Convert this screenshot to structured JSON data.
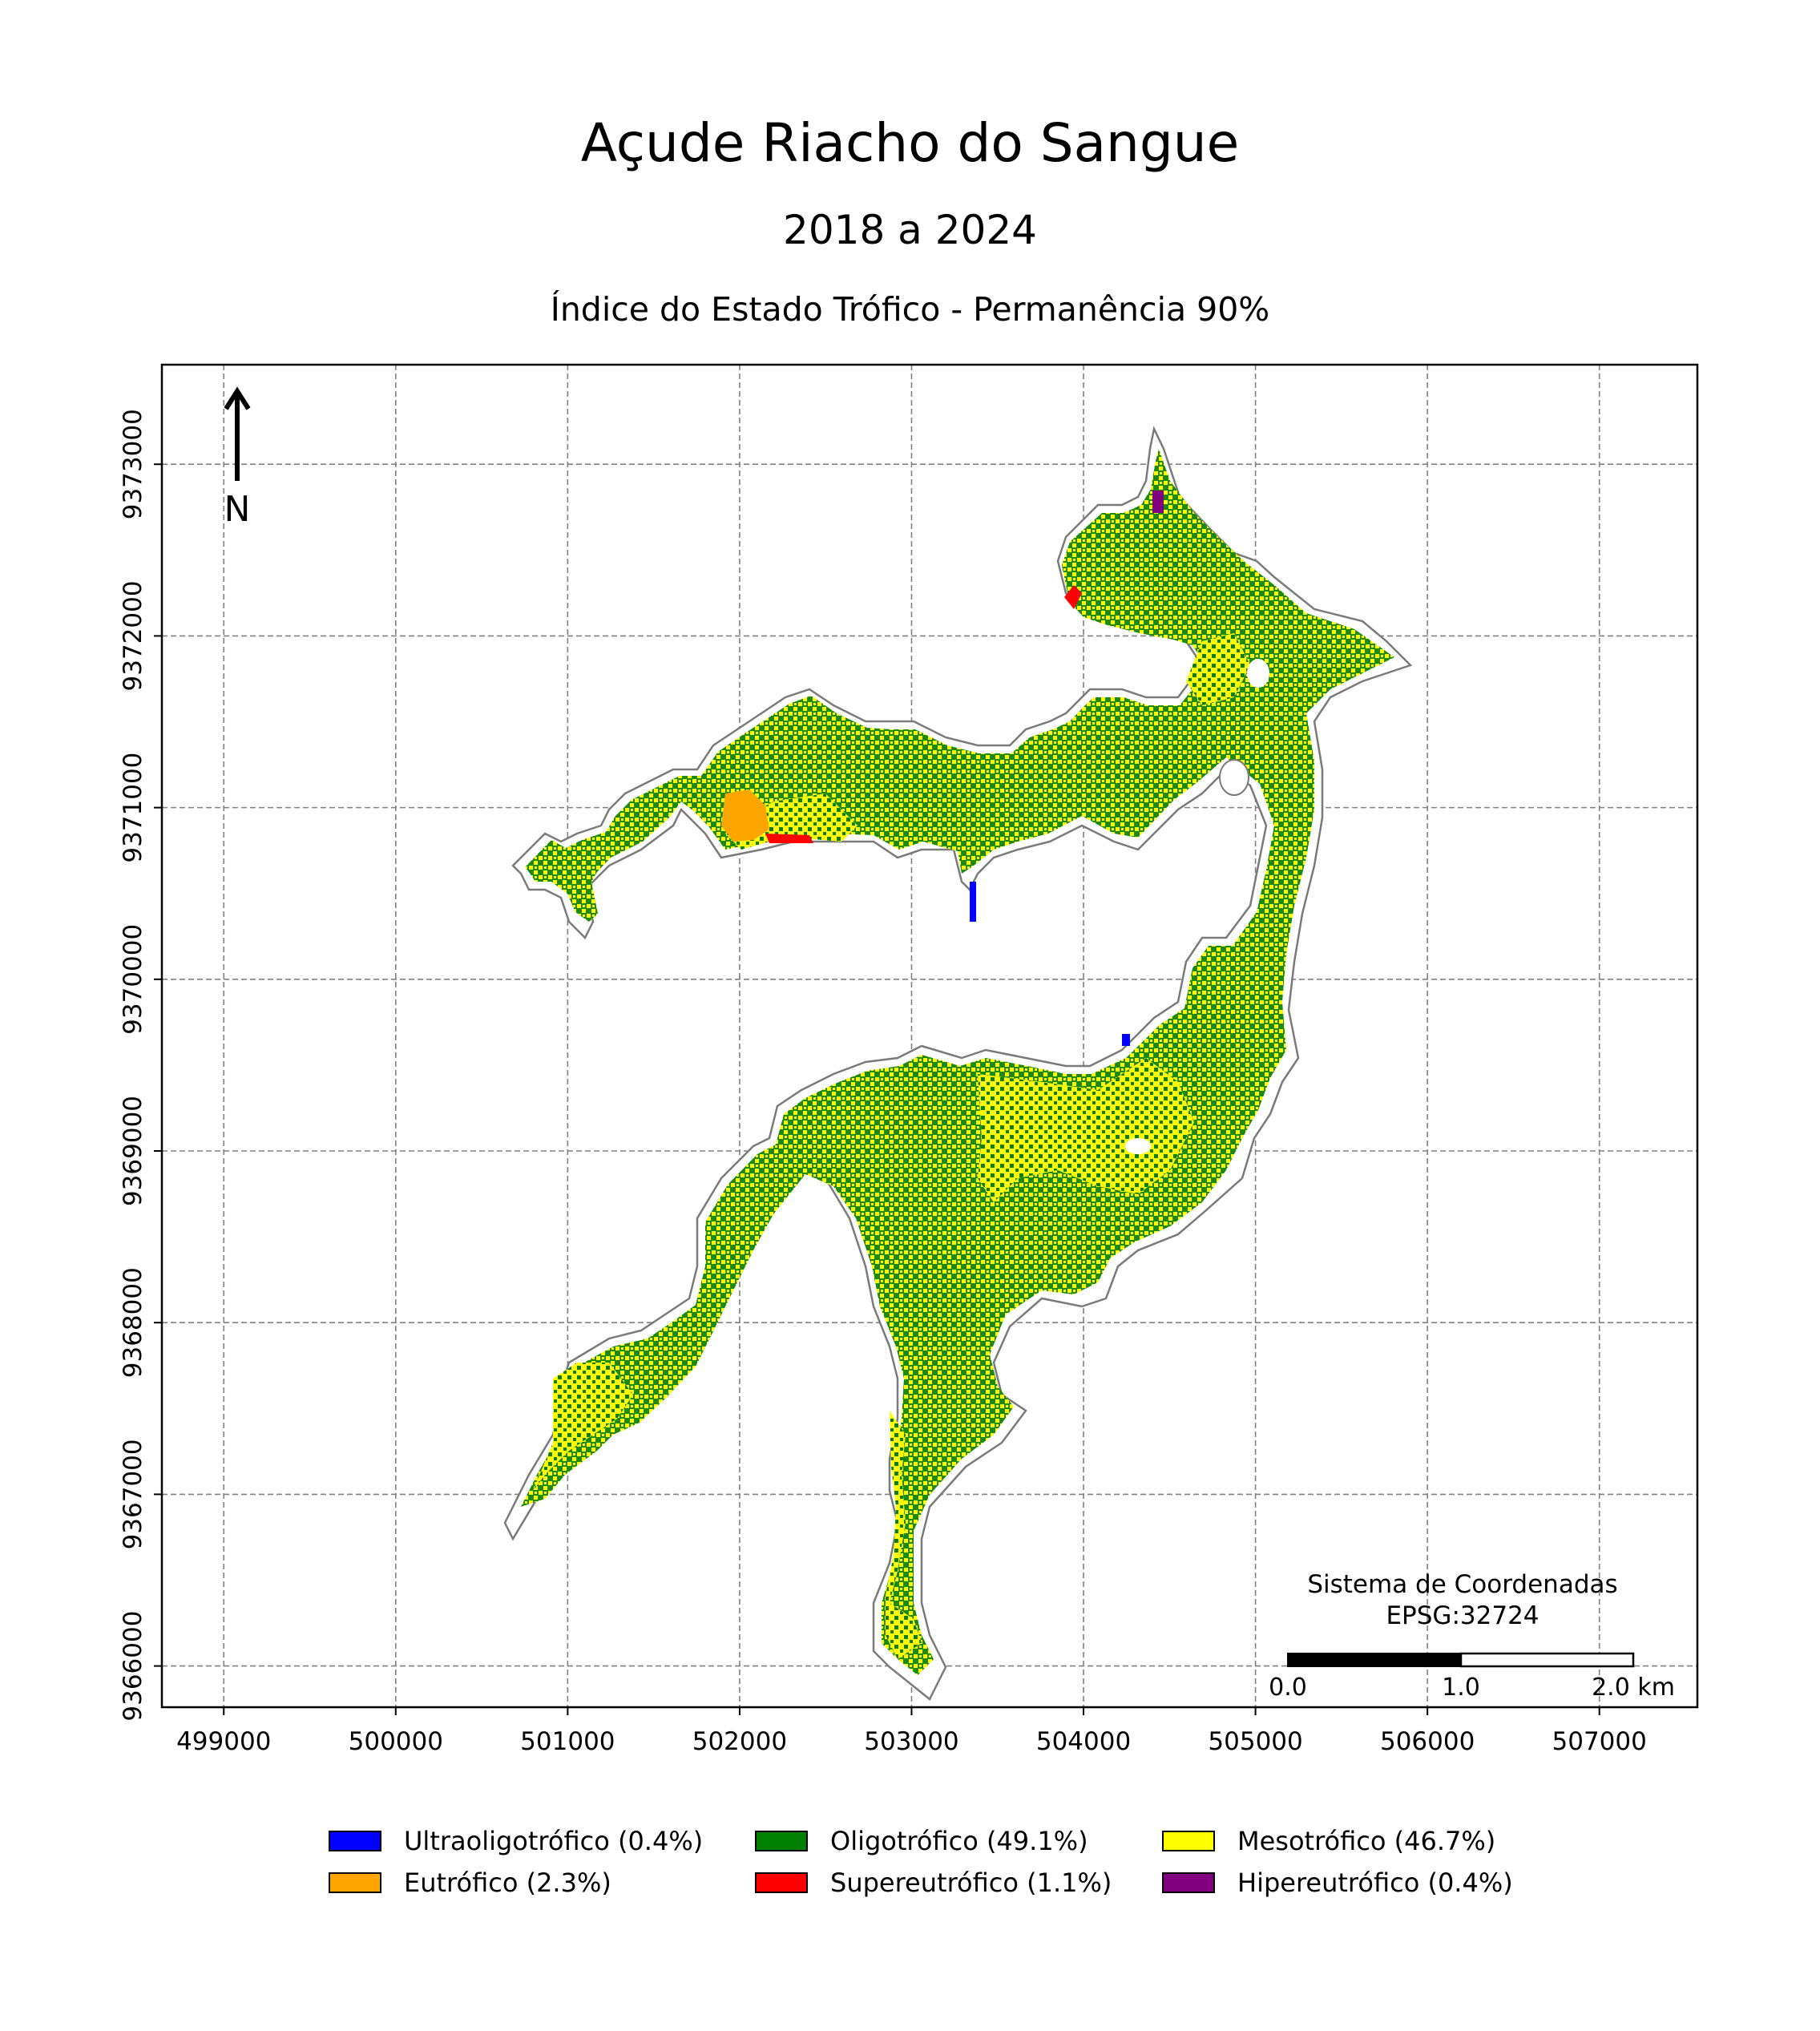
{
  "title": "Açude Riacho do Sangue",
  "subtitle": "2018 a 2024",
  "map_subtitle": "Índice do Estado Trófico - Permanência 90%",
  "north_arrow": {
    "label": "N",
    "icon": "north-arrow-icon"
  },
  "crs": {
    "line1": "Sistema de Coordenadas",
    "line2": "EPSG:32724"
  },
  "scale_bar": {
    "labels": [
      "0.0",
      "1.0",
      "2.0 km"
    ]
  },
  "chart_data": {
    "type": "heatmap",
    "x_ticks": [
      "499000",
      "500000",
      "501000",
      "502000",
      "503000",
      "504000",
      "505000",
      "506000",
      "507000"
    ],
    "y_ticks": [
      "9366000",
      "9367000",
      "9368000",
      "9369000",
      "9370000",
      "9371000",
      "9372000",
      "9373000"
    ],
    "xlim": [
      498640,
      507570
    ],
    "ylim": [
      9365760,
      9373580
    ],
    "grid": true,
    "legend_placement": "bottom",
    "categories": [
      {
        "label": "Ultraoligotrófico (0.4%)",
        "percent": 0.4,
        "color": "#0000ff"
      },
      {
        "label": "Oligotrófico (49.1%)",
        "percent": 49.1,
        "color": "#008000"
      },
      {
        "label": "Mesotrófico (46.7%)",
        "percent": 46.7,
        "color": "#ffff00"
      },
      {
        "label": "Eutrófico (2.3%)",
        "percent": 2.3,
        "color": "#ffa500"
      },
      {
        "label": "Supereutrófico (1.1%)",
        "percent": 1.1,
        "color": "#ff0000"
      },
      {
        "label": "Hipereutrófico (0.4%)",
        "percent": 0.4,
        "color": "#800080"
      }
    ]
  }
}
